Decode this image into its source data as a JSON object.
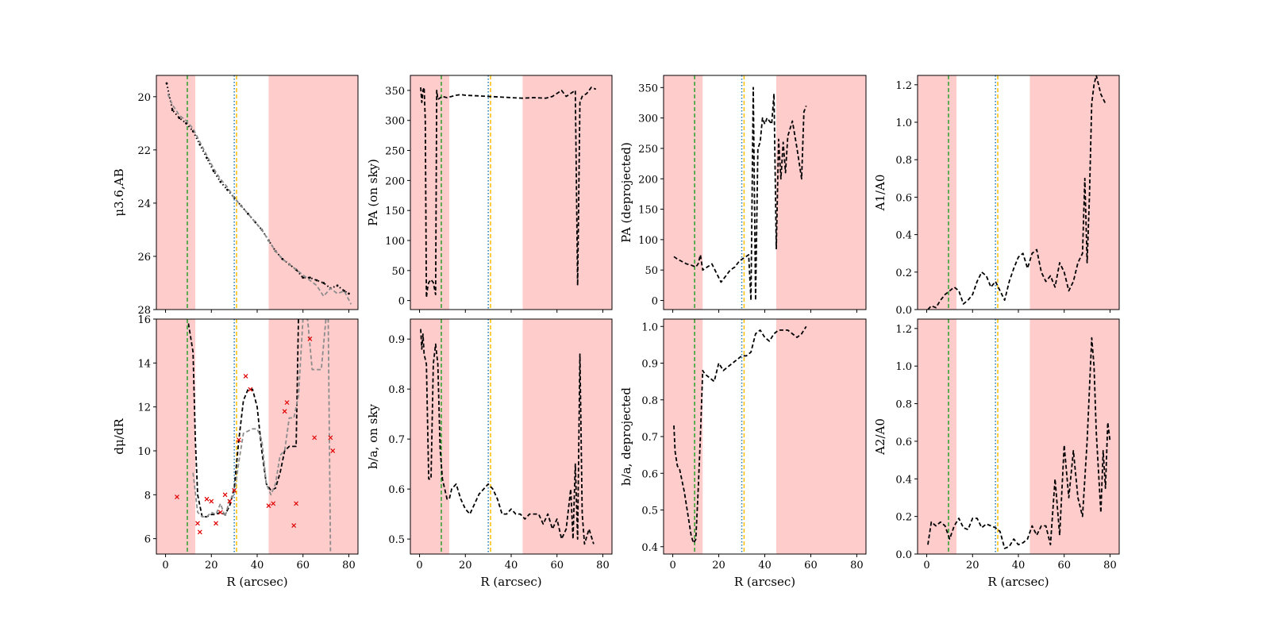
{
  "figure": {
    "xlabel": "R (arcsec)",
    "xlim": [
      -4,
      84
    ],
    "xticks": [
      0,
      20,
      40,
      60,
      80
    ],
    "shaded_regions": [
      [
        -4,
        13
      ],
      [
        45,
        84
      ]
    ],
    "vertical_lines": [
      {
        "name": "green-dashed",
        "x": 9.5,
        "color": "#2ca02c",
        "style": "dashed"
      },
      {
        "name": "blue-dotted",
        "x": 30,
        "color": "#1f77b4",
        "style": "dotted"
      },
      {
        "name": "orange-dashed",
        "x": 31,
        "color": "#ffbf00",
        "style": "dashed"
      }
    ],
    "colors": {
      "shade": "#ffcccc",
      "data": "#000000",
      "model": "#8c8c8c",
      "marker": "#e00000"
    }
  },
  "chart_data": [
    {
      "id": "mu",
      "type": "line",
      "title": "",
      "ylabel": "μ3.6,AB",
      "ylim": [
        28,
        19.2
      ],
      "yinverted": true,
      "yticks": [
        20,
        22,
        24,
        26,
        28
      ],
      "series": [
        {
          "name": "profile",
          "style": "dotted",
          "color": "#000000",
          "x": [
            0.5,
            3,
            6,
            9,
            12,
            15,
            18,
            21,
            24,
            27,
            30,
            33,
            36,
            39,
            42,
            45,
            48,
            51,
            54,
            57,
            60,
            63,
            66,
            69,
            72,
            75,
            78,
            80
          ],
          "y": [
            19.5,
            20.5,
            20.8,
            21.0,
            21.3,
            21.8,
            22.3,
            22.8,
            23.2,
            23.5,
            23.8,
            24.1,
            24.4,
            24.7,
            25.0,
            25.4,
            25.8,
            26.1,
            26.3,
            26.5,
            26.8,
            26.8,
            26.9,
            27.0,
            27.2,
            27.1,
            27.3,
            27.4
          ]
        },
        {
          "name": "model",
          "style": "dashed",
          "color": "#8c8c8c",
          "x": [
            1,
            3,
            6,
            9,
            12,
            15,
            18,
            21,
            24,
            27,
            30,
            33,
            36,
            39,
            42,
            45,
            48,
            51,
            54,
            57,
            60,
            63,
            66,
            69,
            72,
            75,
            78,
            81
          ],
          "y": [
            19.9,
            20.3,
            20.7,
            20.9,
            21.2,
            21.7,
            22.2,
            22.7,
            23.1,
            23.4,
            23.8,
            24.1,
            24.4,
            24.7,
            25.0,
            25.4,
            25.8,
            26.1,
            26.3,
            26.5,
            26.7,
            26.9,
            27.1,
            27.5,
            27.2,
            27.4,
            27.3,
            27.8
          ]
        }
      ]
    },
    {
      "id": "pa-sky",
      "type": "line",
      "title": "",
      "ylabel": "PA (on sky)",
      "ylim": [
        -15,
        375
      ],
      "yticks": [
        0,
        50,
        100,
        150,
        200,
        250,
        300,
        350
      ],
      "series": [
        {
          "name": "pa-sky",
          "style": "dashed",
          "color": "#000000",
          "x": [
            0.5,
            1,
            1.5,
            2,
            2.5,
            3,
            3.5,
            4,
            5,
            6,
            7,
            7.5,
            8,
            10,
            12,
            14,
            16,
            18,
            20,
            25,
            30,
            35,
            40,
            45,
            50,
            55,
            58,
            60,
            62,
            64,
            66,
            68,
            69,
            70,
            71,
            73,
            75,
            77
          ],
          "y": [
            355,
            330,
            350,
            355,
            300,
            5,
            20,
            30,
            35,
            30,
            10,
            350,
            335,
            340,
            338,
            340,
            342,
            343,
            342,
            341,
            340,
            339,
            338,
            337,
            338,
            337,
            340,
            345,
            350,
            340,
            345,
            350,
            25,
            330,
            340,
            345,
            355,
            352
          ]
        }
      ]
    },
    {
      "id": "pa-deproj",
      "type": "line",
      "title": "",
      "ylabel": "PA (deprojected)",
      "ylim": [
        -15,
        370
      ],
      "yticks": [
        0,
        50,
        100,
        150,
        200,
        250,
        300,
        350
      ],
      "series": [
        {
          "name": "pa-deproj",
          "style": "dashed",
          "color": "#000000",
          "x": [
            0.5,
            2,
            4,
            6,
            8,
            10,
            11,
            12,
            13,
            15,
            17,
            19,
            21,
            23,
            25,
            27,
            29,
            31,
            33,
            34,
            35,
            36,
            37,
            38,
            39,
            40,
            41,
            42,
            43,
            44,
            45,
            46,
            47,
            48,
            49,
            50,
            52,
            54,
            56,
            57,
            58
          ],
          "y": [
            72,
            68,
            64,
            60,
            58,
            55,
            60,
            75,
            50,
            55,
            60,
            45,
            30,
            40,
            50,
            55,
            65,
            70,
            75,
            0,
            350,
            0,
            250,
            260,
            300,
            290,
            300,
            295,
            290,
            340,
            85,
            265,
            200,
            260,
            210,
            270,
            295,
            250,
            200,
            310,
            320
          ]
        }
      ]
    },
    {
      "id": "a1-a0",
      "type": "line",
      "title": "",
      "ylabel": "A1/A0",
      "ylim": [
        0,
        1.25
      ],
      "yticks": [
        0.0,
        0.2,
        0.4,
        0.6,
        0.8,
        1.0,
        1.2
      ],
      "series": [
        {
          "name": "a1",
          "style": "dashed",
          "color": "#000000",
          "x": [
            0.5,
            2,
            4,
            6,
            8,
            10,
            12,
            14,
            16,
            18,
            20,
            22,
            24,
            26,
            28,
            30,
            32,
            34,
            36,
            38,
            40,
            42,
            44,
            46,
            48,
            50,
            52,
            54,
            56,
            58,
            60,
            62,
            64,
            66,
            68,
            69,
            70,
            71,
            72,
            73,
            74,
            76,
            78
          ],
          "y": [
            0.0,
            0.02,
            0.01,
            0.05,
            0.08,
            0.1,
            0.12,
            0.1,
            0.03,
            0.05,
            0.08,
            0.15,
            0.2,
            0.18,
            0.12,
            0.15,
            0.1,
            0.05,
            0.15,
            0.22,
            0.28,
            0.3,
            0.22,
            0.3,
            0.32,
            0.2,
            0.15,
            0.18,
            0.12,
            0.25,
            0.2,
            0.1,
            0.15,
            0.25,
            0.3,
            0.7,
            0.25,
            0.6,
            1.1,
            1.2,
            1.25,
            1.15,
            1.1
          ]
        }
      ]
    },
    {
      "id": "dmu-dr",
      "type": "line",
      "title": "",
      "ylabel": "dμ/dR",
      "ylim": [
        5.3,
        16
      ],
      "yticks": [
        6,
        8,
        10,
        12,
        14,
        16
      ],
      "series": [
        {
          "name": "derivative",
          "style": "dashed",
          "color": "#000000",
          "x": [
            10,
            12,
            13,
            14,
            16,
            18,
            20,
            22,
            24,
            26,
            28,
            30,
            32,
            34,
            36,
            38,
            40,
            42,
            44,
            46,
            48,
            50,
            52,
            54,
            56,
            57,
            58
          ],
          "y": [
            15.8,
            14.5,
            10.5,
            8.0,
            7.0,
            7.0,
            7.1,
            7.1,
            7.2,
            7.1,
            7.5,
            8.3,
            10.5,
            12.3,
            12.8,
            12.8,
            12.0,
            10.0,
            8.5,
            8.2,
            8.3,
            9.0,
            10.0,
            10.2,
            10.2,
            10.2,
            16.0
          ]
        },
        {
          "name": "model-derivative",
          "style": "dashed",
          "color": "#8c8c8c",
          "x": [
            12,
            14,
            16,
            18,
            20,
            22,
            24,
            26,
            28,
            30,
            32,
            34,
            36,
            38,
            40,
            42,
            44,
            46,
            48,
            50,
            52,
            54,
            56,
            58,
            60,
            62,
            64,
            66,
            68,
            70,
            71,
            72
          ],
          "y": [
            9.0,
            7.2,
            7.0,
            7.0,
            7.2,
            7.1,
            7.6,
            7.0,
            7.8,
            8.0,
            9.5,
            10.8,
            10.9,
            11.0,
            11.0,
            10.5,
            8.5,
            8.0,
            8.5,
            9.8,
            10.0,
            11.5,
            11.5,
            12.5,
            16.0,
            16.0,
            13.7,
            13.7,
            13.7,
            16.0,
            16.0,
            5.2
          ]
        }
      ],
      "markers": {
        "name": "scatter-points",
        "symbol": "x",
        "color": "#e00000",
        "x": [
          5,
          14,
          15,
          18,
          20,
          22,
          24,
          26,
          28,
          30,
          32,
          35,
          37,
          45,
          47,
          52,
          53,
          56,
          57,
          63,
          65,
          72,
          73
        ],
        "y": [
          7.9,
          6.7,
          6.3,
          7.8,
          7.7,
          6.7,
          7.2,
          8.0,
          7.7,
          8.2,
          10.5,
          13.4,
          12.8,
          7.5,
          7.6,
          11.8,
          12.2,
          6.6,
          7.6,
          15.1,
          10.6,
          10.6,
          10.0
        ]
      }
    },
    {
      "id": "ba-sky",
      "type": "line",
      "title": "",
      "ylabel": "b/a, on sky",
      "ylim": [
        0.47,
        0.94
      ],
      "yticks": [
        0.5,
        0.6,
        0.7,
        0.8,
        0.9
      ],
      "series": [
        {
          "name": "ba-sky",
          "style": "dashed",
          "color": "#000000",
          "x": [
            0.5,
            1,
            1.5,
            2,
            3,
            4,
            5,
            6,
            7,
            8,
            9,
            10,
            11,
            12,
            13,
            14,
            16,
            18,
            20,
            22,
            24,
            26,
            28,
            30,
            32,
            34,
            36,
            38,
            40,
            42,
            44,
            46,
            48,
            50,
            52,
            54,
            56,
            58,
            60,
            62,
            64,
            66,
            67,
            68,
            69,
            70,
            71,
            72,
            74,
            76
          ],
          "y": [
            0.92,
            0.88,
            0.91,
            0.87,
            0.85,
            0.62,
            0.62,
            0.85,
            0.89,
            0.85,
            0.68,
            0.62,
            0.6,
            0.58,
            0.58,
            0.6,
            0.61,
            0.58,
            0.56,
            0.55,
            0.57,
            0.59,
            0.6,
            0.61,
            0.6,
            0.58,
            0.55,
            0.55,
            0.56,
            0.55,
            0.55,
            0.54,
            0.55,
            0.55,
            0.55,
            0.53,
            0.55,
            0.52,
            0.54,
            0.5,
            0.52,
            0.6,
            0.5,
            0.65,
            0.5,
            0.87,
            0.55,
            0.49,
            0.52,
            0.49
          ]
        }
      ]
    },
    {
      "id": "ba-deproj",
      "type": "line",
      "title": "",
      "ylabel": "b/a, deprojected",
      "ylim": [
        0.38,
        1.02
      ],
      "yticks": [
        0.4,
        0.5,
        0.6,
        0.7,
        0.8,
        0.9,
        1.0
      ],
      "series": [
        {
          "name": "ba-deproj",
          "style": "dashed",
          "color": "#000000",
          "x": [
            0.5,
            1,
            1.5,
            2,
            3,
            4,
            5,
            6,
            7,
            8,
            9,
            10,
            11,
            12,
            13,
            14,
            16,
            18,
            20,
            22,
            24,
            26,
            28,
            30,
            32,
            34,
            36,
            38,
            40,
            42,
            44,
            46,
            48,
            50,
            52,
            54,
            56,
            58
          ],
          "y": [
            0.73,
            0.66,
            0.64,
            0.62,
            0.61,
            0.58,
            0.55,
            0.51,
            0.47,
            0.43,
            0.41,
            0.42,
            0.55,
            0.7,
            0.88,
            0.87,
            0.86,
            0.85,
            0.9,
            0.88,
            0.89,
            0.9,
            0.91,
            0.92,
            0.92,
            0.93,
            0.98,
            0.99,
            0.97,
            0.96,
            0.98,
            0.99,
            0.99,
            0.99,
            0.98,
            0.97,
            0.98,
            1.0
          ]
        }
      ]
    },
    {
      "id": "a2-a0",
      "type": "line",
      "title": "",
      "ylabel": "A2/A0",
      "ylim": [
        0,
        1.25
      ],
      "yticks": [
        0.0,
        0.2,
        0.4,
        0.6,
        0.8,
        1.0,
        1.2
      ],
      "series": [
        {
          "name": "a2",
          "style": "dashed",
          "color": "#000000",
          "x": [
            0.5,
            2,
            4,
            6,
            8,
            10,
            12,
            14,
            16,
            18,
            20,
            22,
            24,
            26,
            28,
            30,
            32,
            34,
            36,
            38,
            40,
            42,
            44,
            46,
            48,
            50,
            52,
            54,
            56,
            58,
            60,
            62,
            64,
            66,
            68,
            70,
            72,
            73,
            74,
            76,
            77,
            78,
            79,
            80
          ],
          "y": [
            0.05,
            0.17,
            0.15,
            0.17,
            0.15,
            0.08,
            0.15,
            0.19,
            0.14,
            0.13,
            0.19,
            0.19,
            0.14,
            0.16,
            0.15,
            0.14,
            0.12,
            0.03,
            0.04,
            0.08,
            0.05,
            0.06,
            0.08,
            0.15,
            0.1,
            0.15,
            0.15,
            0.05,
            0.4,
            0.1,
            0.58,
            0.3,
            0.55,
            0.3,
            0.2,
            0.6,
            1.15,
            1.0,
            0.65,
            0.22,
            0.55,
            0.35,
            0.7,
            0.6
          ]
        }
      ]
    }
  ]
}
